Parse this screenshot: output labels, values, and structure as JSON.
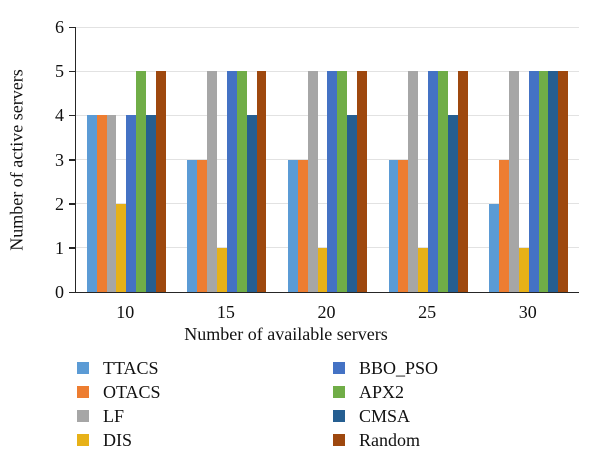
{
  "chart_data": {
    "type": "bar",
    "title": "",
    "xlabel": "Number of available servers",
    "ylabel": "Number of active servers",
    "categories": [
      "10",
      "15",
      "20",
      "25",
      "30"
    ],
    "series": [
      {
        "name": "TTACS",
        "color": "#5B9BD5",
        "values": [
          4,
          3,
          3,
          3,
          2
        ]
      },
      {
        "name": "OTACS",
        "color": "#ED7D31",
        "values": [
          4,
          3,
          3,
          3,
          3
        ]
      },
      {
        "name": "LF",
        "color": "#A6A6A6",
        "values": [
          4,
          5,
          5,
          5,
          5
        ]
      },
      {
        "name": "DIS",
        "color": "#E7B118",
        "values": [
          2,
          1,
          1,
          1,
          1
        ]
      },
      {
        "name": "BBO_PSO",
        "color": "#4472C4",
        "values": [
          4,
          5,
          5,
          5,
          5
        ]
      },
      {
        "name": "APX2",
        "color": "#70AD47",
        "values": [
          5,
          5,
          5,
          5,
          5
        ]
      },
      {
        "name": "CMSA",
        "color": "#255E91",
        "values": [
          4,
          4,
          4,
          4,
          5
        ]
      },
      {
        "name": "Random",
        "color": "#9E480E",
        "values": [
          5,
          5,
          5,
          5,
          5
        ]
      }
    ],
    "ylim": [
      0,
      6
    ],
    "yticks": [
      0,
      1,
      2,
      3,
      4,
      5,
      6
    ],
    "grid": true,
    "legend_position": "bottom",
    "legend_columns": [
      [
        "TTACS",
        "OTACS",
        "LF",
        "DIS"
      ],
      [
        "BBO_PSO",
        "APX2",
        "CMSA",
        "Random"
      ]
    ]
  },
  "colors": {
    "axis": "#262626",
    "gridline": "#E2E2E2",
    "background": "#FFFFFF",
    "text": "#111111"
  }
}
